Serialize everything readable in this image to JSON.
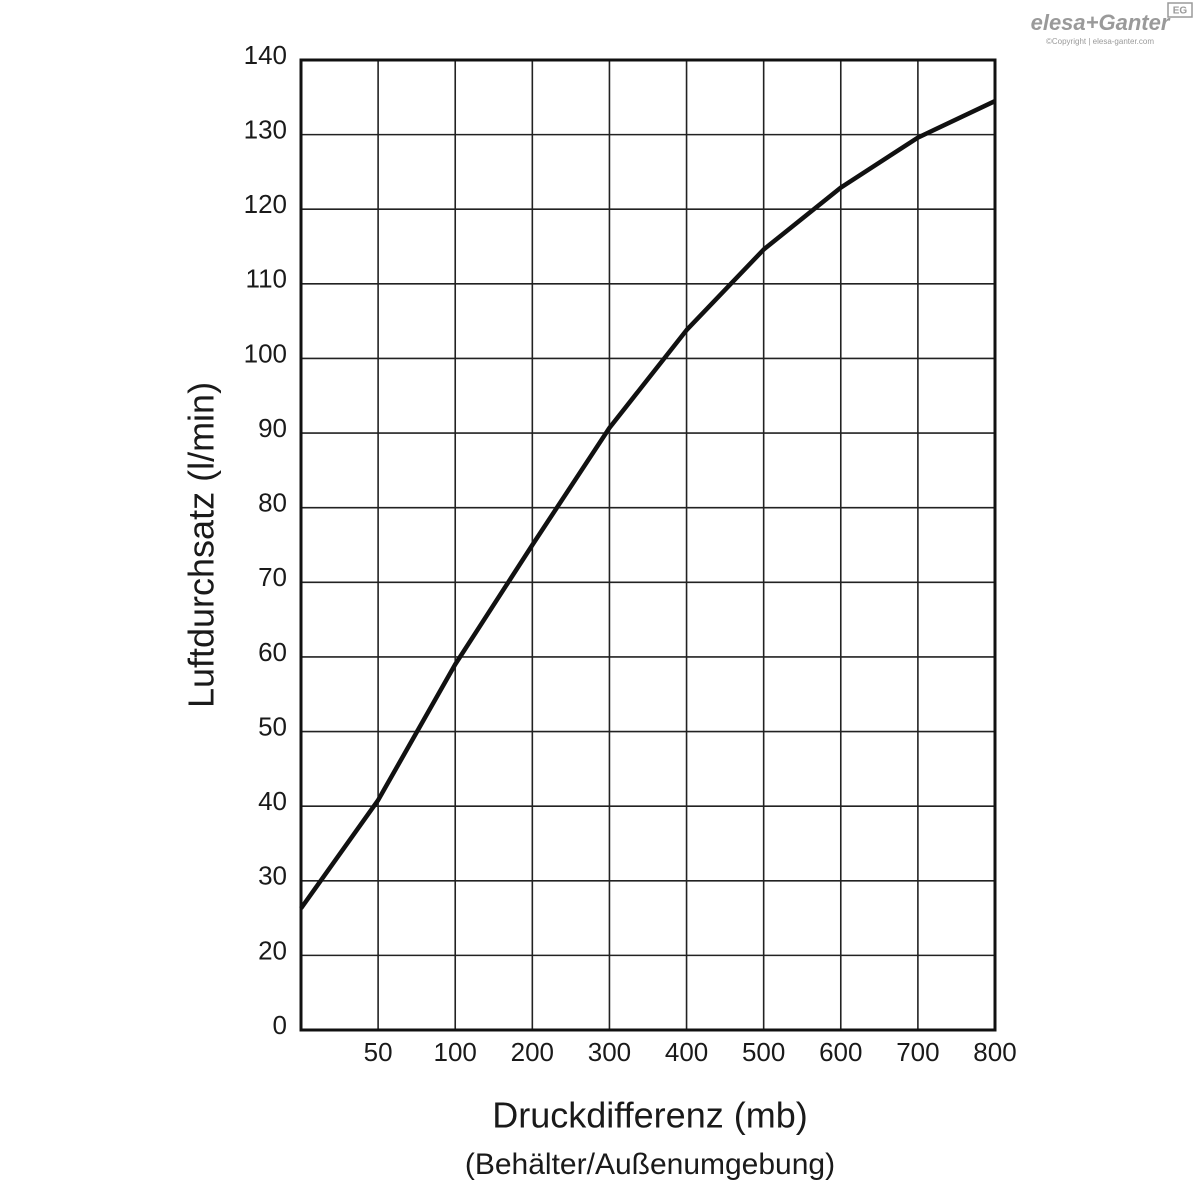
{
  "chart_data": {
    "type": "line",
    "logo": "elesa+Ganter",
    "logo_badge": "EG",
    "copyright": "©Copyright | elesa-ganter.com",
    "x_label": "Druckdifferenz (mb)",
    "x_sublabel": "(Behälter/Außenumgebung)",
    "y_label": "Luftdurchsatz (l/min)",
    "categories": [
      null,
      "50",
      "100",
      "200",
      "300",
      "400",
      "500",
      "600",
      "700",
      "800"
    ],
    "values": [
      26.3,
      40.8,
      59,
      75,
      90.7,
      103.8,
      114.6,
      122.9,
      129.6,
      134.5
    ],
    "color": "#111111",
    "ylim": [
      10,
      140
    ],
    "yticks": [
      {
        "value": 10,
        "label": "0"
      },
      20,
      30,
      40,
      50,
      60,
      70,
      80,
      90,
      100,
      110,
      120,
      130,
      140
    ],
    "grid": true
  }
}
